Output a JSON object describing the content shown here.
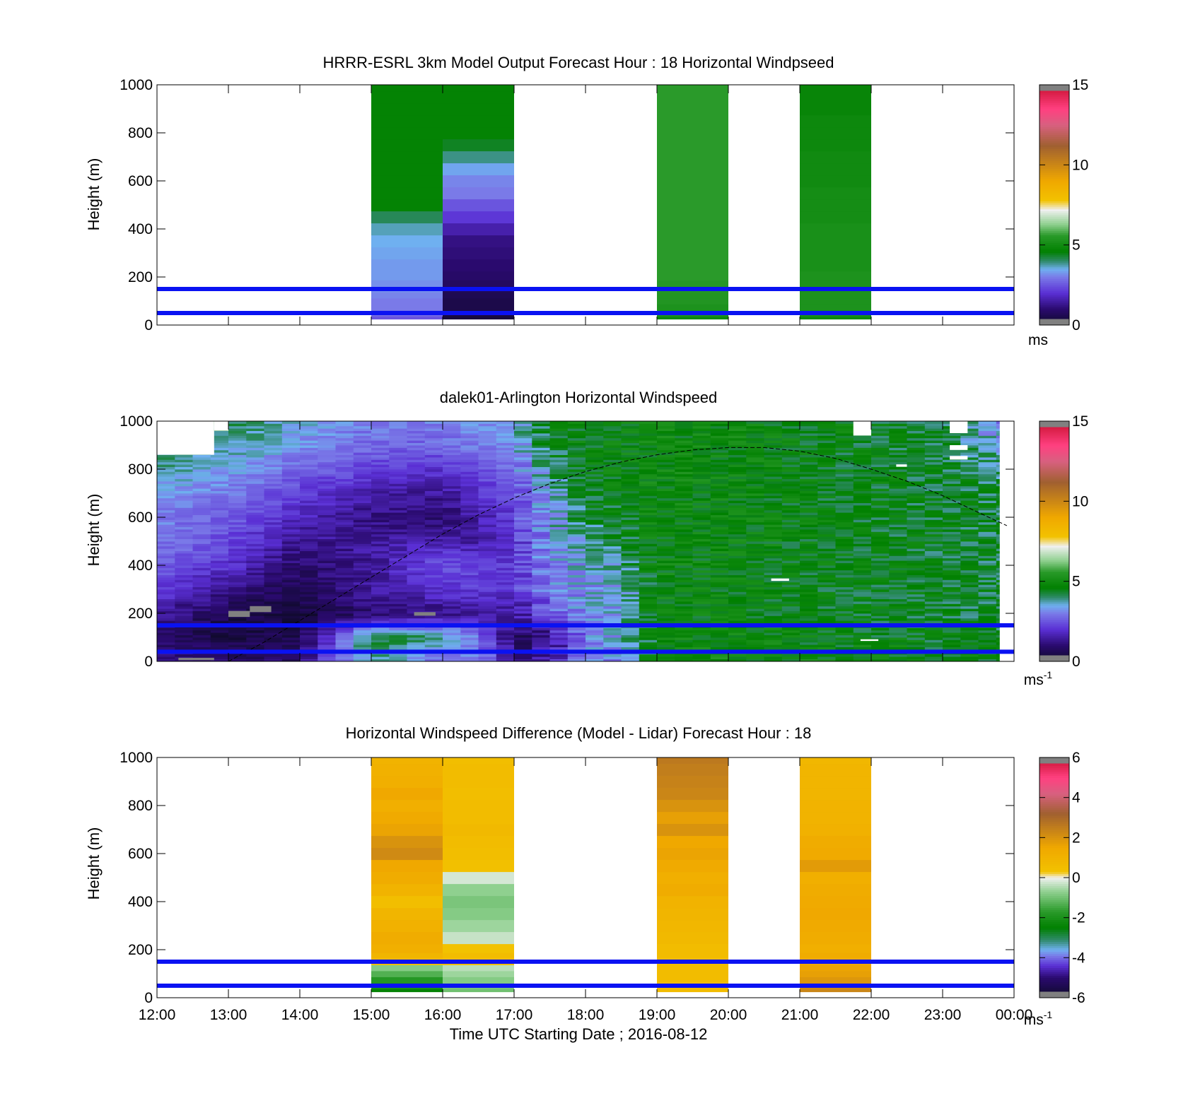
{
  "colors": {
    "boundary_line": "#0a12f2",
    "missing": "#808080",
    "wind_colormap": [
      [
        0,
        "#0d0a26"
      ],
      [
        1,
        "#2a0a6e"
      ],
      [
        2,
        "#5a2fd4"
      ],
      [
        3,
        "#7a7ae8"
      ],
      [
        3.5,
        "#6fb0f0"
      ],
      [
        4,
        "#2f8a6a"
      ],
      [
        4.6,
        "#008000"
      ],
      [
        5.6,
        "#2a9a2a"
      ],
      [
        6.3,
        "#8fd08f"
      ],
      [
        7.2,
        "#f0f0f0"
      ],
      [
        7.8,
        "#f2c200"
      ],
      [
        9,
        "#f0a800"
      ],
      [
        11.2,
        "#a06030"
      ],
      [
        12.5,
        "#d86080"
      ],
      [
        13.5,
        "#ff4080"
      ],
      [
        15,
        "#c8102e"
      ]
    ],
    "diff_colormap": [
      [
        -6,
        "#0d0a26"
      ],
      [
        -5,
        "#2a0a6e"
      ],
      [
        -4.4,
        "#5a2fd4"
      ],
      [
        -3.9,
        "#7a7ae8"
      ],
      [
        -3.6,
        "#6fb0f0"
      ],
      [
        -3.1,
        "#2f8a6a"
      ],
      [
        -2.5,
        "#008000"
      ],
      [
        -1.7,
        "#2a9a2a"
      ],
      [
        -0.7,
        "#8fd08f"
      ],
      [
        0,
        "#f0f0f0"
      ],
      [
        0.3,
        "#f2c200"
      ],
      [
        1.5,
        "#f0a800"
      ],
      [
        3.2,
        "#a06030"
      ],
      [
        4.2,
        "#d86080"
      ],
      [
        5,
        "#ff4080"
      ],
      [
        6,
        "#c8102e"
      ]
    ]
  },
  "chart_data": [
    {
      "type": "heatmap",
      "title": "HRRR-ESRL 3km Model Output   Forecast Hour : 18 Horizontal Windpseed",
      "ylabel": "Height (m)",
      "xlabel": "",
      "xlim": [
        12,
        24
      ],
      "ylim": [
        0,
        1000
      ],
      "x_ticks": [
        12,
        13,
        14,
        15,
        16,
        17,
        18,
        19,
        20,
        21,
        22,
        23,
        24
      ],
      "y_ticks": [
        0,
        200,
        400,
        600,
        800,
        1000
      ],
      "colorbar": {
        "range": [
          0,
          15
        ],
        "ticks": [
          0,
          5,
          10,
          15
        ],
        "unit": "ms",
        "unit_sup": ""
      },
      "boundary_heights": [
        50,
        150
      ],
      "profile_heights": [
        25,
        50,
        75,
        100,
        125,
        150,
        175,
        200,
        250,
        300,
        350,
        400,
        450,
        500,
        550,
        600,
        650,
        700,
        750,
        800,
        850,
        900,
        950,
        1000
      ],
      "columns": [
        {
          "start": 15,
          "end": 16,
          "values": [
            2.5,
            2.8,
            3.0,
            3.0,
            3.1,
            3.2,
            3.2,
            3.3,
            3.3,
            3.4,
            3.5,
            3.7,
            4.1,
            4.7,
            4.7,
            4.7,
            4.7,
            4.7,
            4.7,
            4.7,
            4.7,
            4.7,
            4.7,
            4.7
          ]
        },
        {
          "start": 16,
          "end": 17,
          "values": [
            0.3,
            0.4,
            0.5,
            0.5,
            0.6,
            0.7,
            0.8,
            0.9,
            1.0,
            1.1,
            1.2,
            1.6,
            2.1,
            2.5,
            3.0,
            3.1,
            3.4,
            3.9,
            4.4,
            4.7,
            4.7,
            4.7,
            4.7,
            4.7
          ]
        },
        {
          "start": 19,
          "end": 20,
          "values": [
            4.9,
            5.3,
            5.3,
            5.4,
            5.4,
            5.5,
            5.5,
            5.6,
            5.6,
            5.6,
            5.6,
            5.6,
            5.6,
            5.6,
            5.6,
            5.6,
            5.6,
            5.6,
            5.6,
            5.6,
            5.6,
            5.6,
            5.6,
            5.6
          ]
        },
        {
          "start": 21,
          "end": 22,
          "values": [
            4.9,
            5.2,
            5.3,
            5.3,
            5.3,
            5.3,
            5.3,
            5.3,
            5.2,
            5.2,
            5.2,
            5.2,
            5.1,
            5.1,
            5.1,
            5.0,
            5.0,
            5.0,
            4.9,
            4.9,
            4.9,
            4.8,
            4.8,
            4.8
          ]
        }
      ]
    },
    {
      "type": "heatmap",
      "title": "dalek01-Arlington  Horizontal Windspeed",
      "ylabel": "Height (m)",
      "xlabel": "",
      "xlim": [
        12,
        24
      ],
      "ylim": [
        0,
        1000
      ],
      "x_ticks": [
        12,
        13,
        14,
        15,
        16,
        17,
        18,
        19,
        20,
        21,
        22,
        23,
        24
      ],
      "y_ticks": [
        0,
        200,
        400,
        600,
        800,
        1000
      ],
      "colorbar": {
        "range": [
          0,
          15
        ],
        "ticks": [
          0,
          5,
          10,
          15
        ],
        "unit": "ms",
        "unit_sup": "-1"
      },
      "boundary_heights": [
        40,
        150
      ],
      "x_time_nodes": [
        12,
        13,
        14,
        15,
        16,
        16.5,
        17,
        17.5,
        18,
        18.5,
        19,
        20,
        21,
        22,
        23,
        23.8
      ],
      "height_nodes": [
        25,
        100,
        200,
        300,
        400,
        500,
        600,
        700,
        800,
        900,
        1000
      ],
      "speed_field": [
        [
          1.2,
          0.8,
          1.0,
          4.0,
          2.8,
          3.2,
          1.2,
          1.5,
          3.0,
          3.2,
          4.8,
          5.0,
          4.8,
          4.7,
          4.6,
          4.5
        ],
        [
          0.8,
          0.4,
          0.6,
          4.3,
          4.0,
          2.8,
          0.8,
          1.2,
          3.0,
          3.5,
          4.7,
          4.8,
          4.6,
          4.6,
          4.5,
          4.4
        ],
        [
          1.5,
          0.5,
          0.3,
          1.0,
          1.2,
          1.5,
          1.4,
          2.5,
          3.2,
          3.4,
          4.8,
          4.7,
          4.5,
          4.5,
          4.4,
          4.3
        ],
        [
          2.2,
          1.2,
          0.6,
          1.5,
          2.0,
          2.2,
          2.0,
          3.0,
          3.3,
          3.5,
          4.8,
          4.7,
          4.5,
          4.5,
          4.4,
          4.3
        ],
        [
          2.6,
          2.0,
          0.9,
          1.4,
          2.6,
          2.2,
          2.1,
          3.2,
          3.4,
          3.8,
          4.8,
          4.7,
          4.6,
          4.5,
          4.4,
          4.3
        ],
        [
          3.0,
          2.4,
          1.3,
          1.5,
          1.6,
          1.5,
          2.0,
          3.3,
          3.7,
          4.2,
          4.8,
          4.8,
          4.6,
          4.5,
          4.4,
          4.3
        ],
        [
          3.1,
          2.6,
          1.8,
          1.2,
          1.0,
          1.6,
          2.2,
          3.4,
          4.2,
          4.4,
          4.8,
          4.8,
          4.6,
          4.5,
          4.4,
          4.3
        ],
        [
          3.3,
          3.0,
          2.2,
          1.6,
          1.4,
          2.0,
          2.4,
          3.5,
          4.4,
          4.6,
          4.8,
          4.8,
          4.6,
          4.5,
          4.4,
          4.2
        ],
        [
          3.8,
          3.4,
          2.8,
          2.2,
          2.0,
          2.5,
          2.8,
          3.9,
          4.5,
          4.7,
          4.8,
          4.8,
          4.6,
          4.5,
          4.4,
          4.0
        ],
        [
          4.2,
          3.8,
          3.3,
          2.8,
          2.7,
          3.0,
          3.3,
          4.3,
          4.6,
          4.7,
          4.8,
          4.8,
          4.6,
          4.5,
          4.3,
          3.5
        ],
        [
          4.4,
          4.3,
          3.5,
          3.0,
          3.0,
          3.2,
          3.5,
          4.6,
          4.7,
          4.7,
          4.8,
          4.8,
          4.6,
          4.5,
          4.2,
          3.0
        ]
      ],
      "missing_patches": [
        {
          "t0": 13.0,
          "t1": 13.3,
          "h0": 185,
          "h1": 210
        },
        {
          "t0": 13.3,
          "t1": 13.6,
          "h0": 205,
          "h1": 230
        },
        {
          "t0": 15.6,
          "t1": 15.9,
          "h0": 190,
          "h1": 205
        },
        {
          "t0": 12.3,
          "t1": 12.8,
          "h0": 5,
          "h1": 15
        }
      ],
      "gaps": [
        {
          "t0": 12.0,
          "t1": 12.8,
          "h0": 860,
          "h1": 1000
        },
        {
          "t0": 12.8,
          "t1": 13.0,
          "h0": 960,
          "h1": 1000
        },
        {
          "t0": 21.75,
          "t1": 22.0,
          "h0": 940,
          "h1": 1000
        },
        {
          "t0": 22.35,
          "t1": 22.5,
          "h0": 810,
          "h1": 820
        },
        {
          "t0": 23.1,
          "t1": 23.35,
          "h0": 950,
          "h1": 1000
        },
        {
          "t0": 23.1,
          "t1": 23.35,
          "h0": 880,
          "h1": 900
        },
        {
          "t0": 23.1,
          "t1": 23.35,
          "h0": 840,
          "h1": 855
        },
        {
          "t0": 20.6,
          "t1": 20.85,
          "h0": 335,
          "h1": 345
        },
        {
          "t0": 21.85,
          "t1": 22.1,
          "h0": 85,
          "h1": 92
        },
        {
          "t0": 23.8,
          "t1": 24.0,
          "h0": 0,
          "h1": 1000
        }
      ],
      "boundary_layer_curve": {
        "t": [
          13.0,
          13.5,
          14.0,
          14.5,
          15.0,
          15.5,
          16.0,
          16.5,
          17.0,
          17.5,
          18.0,
          18.5,
          19.0,
          19.5,
          20.0,
          20.5,
          21.0,
          21.5,
          22.0,
          22.5,
          23.0,
          23.5,
          23.9
        ],
        "h": [
          0,
          80,
          170,
          260,
          350,
          440,
          530,
          610,
          680,
          740,
          790,
          830,
          860,
          880,
          890,
          890,
          875,
          845,
          800,
          750,
          690,
          620,
          565
        ]
      }
    },
    {
      "type": "heatmap",
      "title": "Horizontal Windspeed Difference (Model - Lidar) Forecast Hour : 18",
      "ylabel": "Height (m)",
      "xlabel": "Time UTC  Starting Date ; 2016-08-12",
      "xlim": [
        12,
        24
      ],
      "ylim": [
        0,
        1000
      ],
      "x_ticks": [
        12,
        13,
        14,
        15,
        16,
        17,
        18,
        19,
        20,
        21,
        22,
        23,
        24
      ],
      "x_tick_labels": [
        "12:00",
        "13:00",
        "14:00",
        "15:00",
        "16:00",
        "17:00",
        "18:00",
        "19:00",
        "20:00",
        "21:00",
        "22:00",
        "23:00",
        "00:00"
      ],
      "y_ticks": [
        0,
        200,
        400,
        600,
        800,
        1000
      ],
      "colorbar": {
        "range": [
          -6,
          6
        ],
        "ticks": [
          -6,
          -4,
          -2,
          0,
          2,
          4,
          6
        ],
        "unit": "ms",
        "unit_sup": "-1"
      },
      "boundary_heights": [
        50,
        150
      ],
      "profile_heights": [
        25,
        50,
        75,
        100,
        125,
        150,
        175,
        200,
        250,
        300,
        350,
        400,
        450,
        500,
        550,
        600,
        650,
        700,
        750,
        800,
        850,
        900,
        950,
        1000
      ],
      "columns": [
        {
          "start": 15,
          "end": 16,
          "values": [
            -2.4,
            -2.0,
            -1.8,
            -1.3,
            -0.8,
            0.4,
            0.9,
            1.2,
            1.3,
            1.1,
            0.9,
            0.5,
            1.0,
            1.3,
            1.5,
            2.2,
            2.0,
            1.6,
            1.4,
            1.2,
            1.5,
            1.2,
            1.1,
            1.0
          ]
        },
        {
          "start": 16,
          "end": 17,
          "values": [
            -1.0,
            -0.9,
            -0.8,
            -0.6,
            -0.4,
            0.5,
            0.6,
            0.3,
            -0.3,
            -0.6,
            -0.8,
            -0.9,
            -0.7,
            -0.2,
            0.4,
            0.5,
            0.6,
            0.7,
            0.6,
            0.6,
            0.5,
            0.6,
            0.6,
            0.5
          ]
        },
        {
          "start": 19,
          "end": 20,
          "values": [
            0.6,
            0.6,
            0.6,
            0.6,
            0.6,
            0.6,
            0.6,
            0.6,
            0.7,
            0.8,
            0.9,
            1.0,
            1.3,
            1.2,
            1.4,
            1.6,
            1.5,
            2.0,
            1.7,
            2.0,
            2.3,
            2.4,
            2.5,
            2.6
          ]
        },
        {
          "start": 21,
          "end": 22,
          "values": [
            2.3,
            2.2,
            1.9,
            1.7,
            1.6,
            1.5,
            1.3,
            1.2,
            1.3,
            1.4,
            1.5,
            1.4,
            1.3,
            1.2,
            1.8,
            1.4,
            1.3,
            1.1,
            1.0,
            1.0,
            0.9,
            0.9,
            0.9,
            0.8
          ]
        }
      ]
    }
  ]
}
